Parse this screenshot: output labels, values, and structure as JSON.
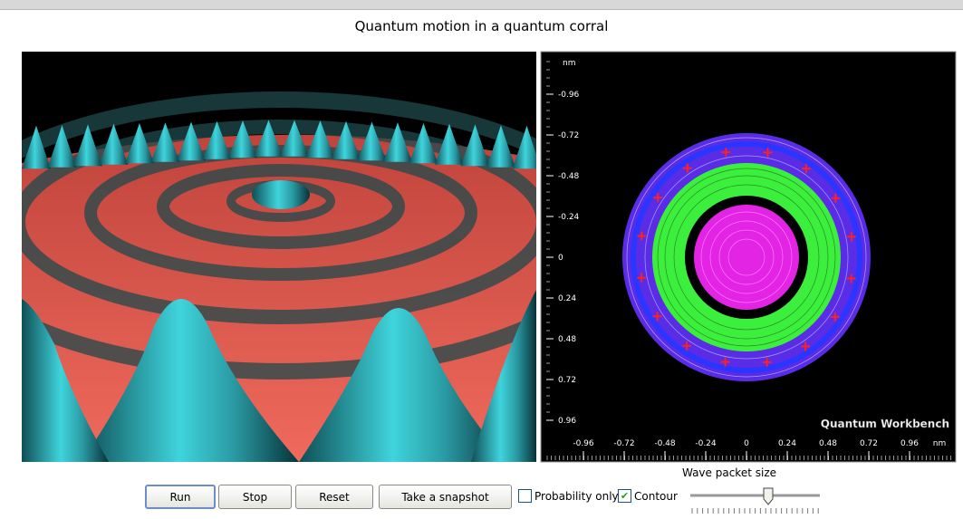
{
  "title": "Quantum motion in a quantum corral",
  "plot": {
    "y_unit": "nm",
    "x_unit": "nm",
    "yticks": [
      "-0.96",
      "-0.72",
      "-0.48",
      "-0.24",
      "0",
      "0.24",
      "0.48",
      "0.72",
      "0.96"
    ],
    "xticks": [
      "-0.96",
      "-0.72",
      "-0.48",
      "-0.24",
      "0",
      "0.24",
      "0.48",
      "0.72",
      "0.96"
    ],
    "watermark": "Quantum Workbench"
  },
  "controls": {
    "buttons": [
      "Run",
      "Stop",
      "Reset",
      "Take a snapshot"
    ],
    "checkboxes": [
      {
        "label": "Probability only",
        "checked": false
      },
      {
        "label": "Contour",
        "checked": true
      }
    ],
    "slider": {
      "label": "Wave packet size"
    }
  }
}
